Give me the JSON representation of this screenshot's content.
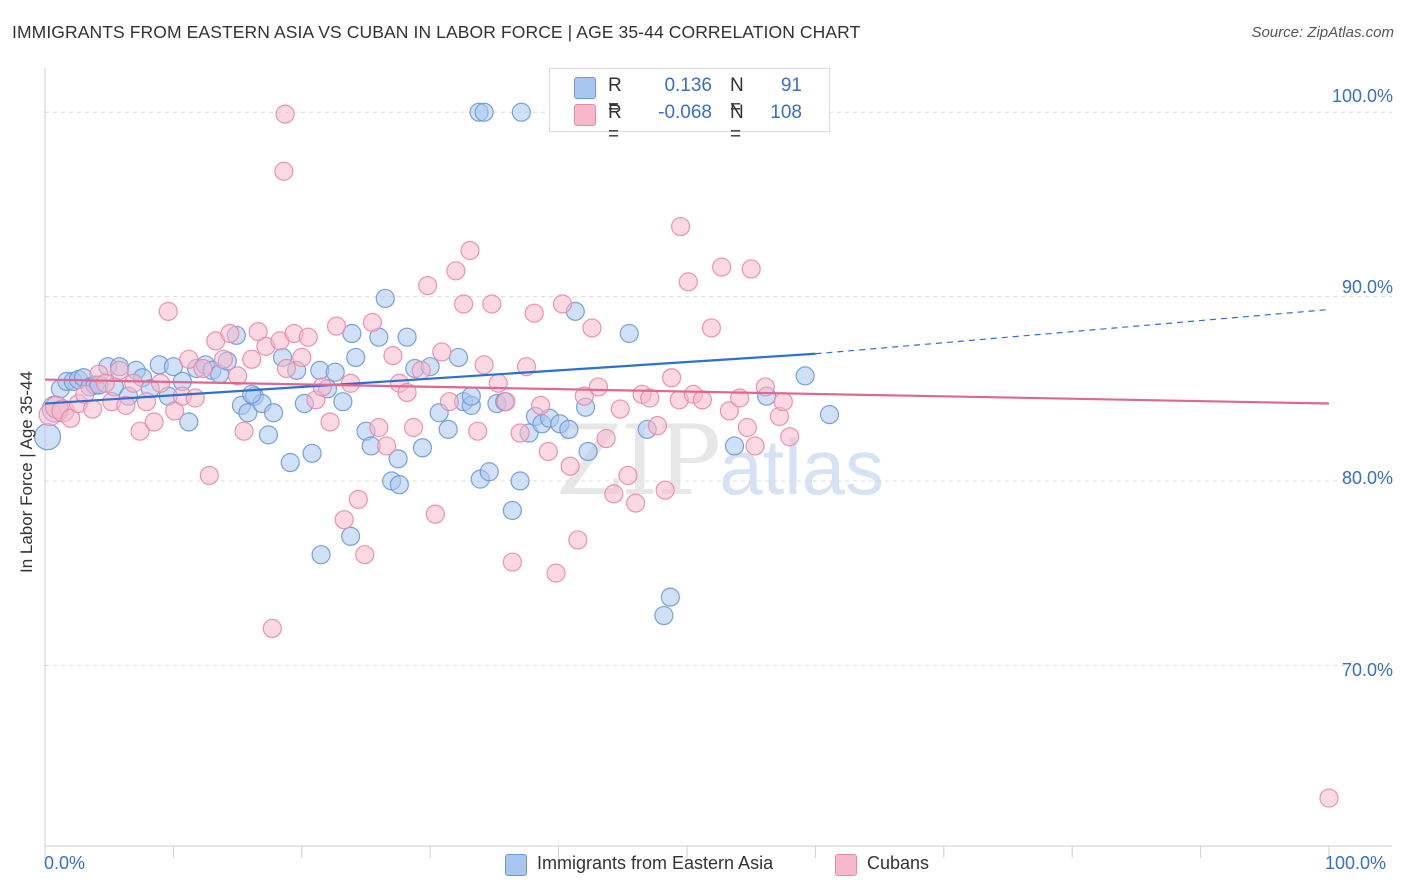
{
  "title": "IMMIGRANTS FROM EASTERN ASIA VS CUBAN IN LABOR FORCE | AGE 35-44 CORRELATION CHART",
  "source": "Source: ZipAtlas.com",
  "watermark": {
    "zip": "ZIP",
    "atlas": "atlas"
  },
  "legend_top": {
    "rows": [
      {
        "r_label": "R =",
        "r_value": "0.136",
        "n_label": "N =",
        "n_value": "91",
        "color": "#a9c6ef"
      },
      {
        "r_label": "R =",
        "r_value": "-0.068",
        "n_label": "N =",
        "n_value": "108",
        "color": "#f7b8cb"
      }
    ]
  },
  "colors": {
    "blue_fill": "#a9c6ef",
    "blue_stroke": "#6b98d8",
    "blue_line": "#2e6fd0",
    "pink_fill": "#f7b8cb",
    "pink_stroke": "#e889a8",
    "pink_line": "#e0678f",
    "grid": "#dcdcdc",
    "tick_label": "#3a6fc4"
  },
  "chart_data": {
    "type": "scatter",
    "title": "IMMIGRANTS FROM EASTERN ASIA VS CUBAN IN LABOR FORCE | AGE 35-44 CORRELATION CHART",
    "xlabel": "",
    "ylabel": "In Labor Force | Age 35-44",
    "xlim": [
      0,
      100
    ],
    "ylim": [
      60.2,
      102.4
    ],
    "x_tick_labels": [
      "0.0%",
      "100.0%"
    ],
    "y_ticks": [
      100,
      90,
      80,
      70
    ],
    "y_tick_labels": [
      "100.0%",
      "90.0%",
      "80.0%",
      "70.0%"
    ],
    "grid": true,
    "legend_position": "bottom",
    "series": [
      {
        "name": "Immigrants from Eastern Asia",
        "R": 0.136,
        "N": 91,
        "trend": {
          "x0": 0,
          "y0": 84.2,
          "x1": 60,
          "y1": 86.9,
          "dashed_to_x": 100,
          "dashed_to_y": 89.3
        },
        "points": [
          [
            0.2,
            82.4
          ],
          [
            0.8,
            83.9
          ],
          [
            1.2,
            85
          ],
          [
            1.7,
            85.4
          ],
          [
            2.2,
            85.4
          ],
          [
            2.6,
            85.5
          ],
          [
            3,
            85.6
          ],
          [
            3.5,
            85.1
          ],
          [
            3.9,
            85.2
          ],
          [
            4.2,
            85.2
          ],
          [
            4.9,
            86.2
          ],
          [
            5.4,
            85.1
          ],
          [
            5.8,
            86.2
          ],
          [
            6.5,
            84.6
          ],
          [
            7.1,
            86
          ],
          [
            7.6,
            85.6
          ],
          [
            8.2,
            85
          ],
          [
            8.9,
            86.3
          ],
          [
            9.6,
            84.6
          ],
          [
            10,
            86.2
          ],
          [
            10.7,
            85.4
          ],
          [
            11.2,
            83.2
          ],
          [
            11.8,
            86.1
          ],
          [
            12.5,
            86.3
          ],
          [
            13,
            86
          ],
          [
            13.6,
            85.8
          ],
          [
            14.2,
            86.5
          ],
          [
            14.9,
            87.9
          ],
          [
            15.3,
            84.1
          ],
          [
            15.8,
            83.7
          ],
          [
            16.3,
            84.6
          ],
          [
            16.9,
            84.2
          ],
          [
            17.4,
            82.5
          ],
          [
            17.8,
            83.7
          ],
          [
            18.5,
            86.7
          ],
          [
            19.1,
            81
          ],
          [
            19.6,
            86
          ],
          [
            20.2,
            84.2
          ],
          [
            20.8,
            81.5
          ],
          [
            21.4,
            86
          ],
          [
            22,
            85
          ],
          [
            22.6,
            85.9
          ],
          [
            23.2,
            84.3
          ],
          [
            23.9,
            88
          ],
          [
            24.2,
            86.7
          ],
          [
            25,
            82.7
          ],
          [
            25.4,
            81.9
          ],
          [
            26,
            87.8
          ],
          [
            26.5,
            89.9
          ],
          [
            27,
            80
          ],
          [
            27.6,
            79.8
          ],
          [
            28.2,
            87.8
          ],
          [
            28.8,
            86.1
          ],
          [
            29.4,
            81.8
          ],
          [
            30,
            86.2
          ],
          [
            30.7,
            83.7
          ],
          [
            31.4,
            82.8
          ],
          [
            32.2,
            86.7
          ],
          [
            32.6,
            84.3
          ],
          [
            33.2,
            84.1
          ],
          [
            33.9,
            80.1
          ],
          [
            34.6,
            80.5
          ],
          [
            35.2,
            84.2
          ],
          [
            35.8,
            84.3
          ],
          [
            36.4,
            78.4
          ],
          [
            37,
            80
          ],
          [
            37.7,
            82.6
          ],
          [
            38.2,
            83.5
          ],
          [
            38.7,
            83.1
          ],
          [
            39.3,
            83.4
          ],
          [
            40.1,
            83.1
          ],
          [
            40.8,
            82.8
          ],
          [
            41.3,
            89.2
          ],
          [
            42.3,
            81.6
          ],
          [
            33.8,
            100
          ],
          [
            34.2,
            100
          ],
          [
            37.1,
            100
          ],
          [
            45.5,
            88
          ],
          [
            46.9,
            82.8
          ],
          [
            48.7,
            73.7
          ],
          [
            48.2,
            72.7
          ],
          [
            53.7,
            81.9
          ],
          [
            56.2,
            84.6
          ],
          [
            59.2,
            85.7
          ],
          [
            61.1,
            83.6
          ],
          [
            23.8,
            77
          ],
          [
            21.5,
            76
          ],
          [
            42.1,
            84
          ],
          [
            33.2,
            84.6
          ],
          [
            27.5,
            81.2
          ],
          [
            16.1,
            84.7
          ]
        ]
      },
      {
        "name": "Cubans",
        "R": -0.068,
        "N": 108,
        "trend": {
          "x0": 0,
          "y0": 85.5,
          "x1": 100,
          "y1": 84.2
        },
        "points": [
          [
            0.4,
            83.6
          ],
          [
            0.9,
            84
          ],
          [
            1.4,
            83.8
          ],
          [
            2,
            83.4
          ],
          [
            2.6,
            84.2
          ],
          [
            3.1,
            84.7
          ],
          [
            3.7,
            83.9
          ],
          [
            4.2,
            85.8
          ],
          [
            4.7,
            85.3
          ],
          [
            5.2,
            84.3
          ],
          [
            5.8,
            86
          ],
          [
            6.3,
            84.1
          ],
          [
            6.9,
            85.3
          ],
          [
            7.4,
            82.7
          ],
          [
            7.9,
            84.3
          ],
          [
            8.5,
            83.2
          ],
          [
            9,
            85.3
          ],
          [
            9.6,
            89.2
          ],
          [
            10.1,
            83.8
          ],
          [
            10.7,
            84.6
          ],
          [
            11.2,
            86.6
          ],
          [
            11.7,
            84.5
          ],
          [
            12.3,
            86.1
          ],
          [
            12.8,
            80.3
          ],
          [
            13.3,
            87.6
          ],
          [
            13.9,
            86.6
          ],
          [
            14.4,
            88
          ],
          [
            15,
            85.7
          ],
          [
            15.5,
            82.7
          ],
          [
            16.1,
            86.6
          ],
          [
            16.6,
            88.1
          ],
          [
            17.2,
            87.3
          ],
          [
            17.7,
            72
          ],
          [
            18.3,
            87.6
          ],
          [
            18.8,
            86.1
          ],
          [
            19.4,
            88
          ],
          [
            20,
            86.7
          ],
          [
            20.5,
            87.8
          ],
          [
            21.1,
            84.4
          ],
          [
            21.6,
            85.1
          ],
          [
            22.2,
            83.2
          ],
          [
            22.7,
            88.4
          ],
          [
            23.3,
            77.9
          ],
          [
            23.8,
            85.3
          ],
          [
            24.4,
            79
          ],
          [
            24.9,
            76
          ],
          [
            25.5,
            88.6
          ],
          [
            26,
            82.9
          ],
          [
            26.6,
            81.9
          ],
          [
            27.1,
            86.8
          ],
          [
            27.6,
            85.3
          ],
          [
            28.2,
            84.8
          ],
          [
            28.7,
            82.9
          ],
          [
            29.3,
            86
          ],
          [
            29.8,
            90.6
          ],
          [
            30.4,
            78.2
          ],
          [
            30.9,
            87
          ],
          [
            31.5,
            84.3
          ],
          [
            32,
            91.4
          ],
          [
            32.6,
            89.6
          ],
          [
            33.1,
            92.5
          ],
          [
            33.7,
            82.7
          ],
          [
            34.2,
            86.3
          ],
          [
            34.8,
            89.6
          ],
          [
            35.3,
            85.3
          ],
          [
            35.9,
            84.3
          ],
          [
            36.4,
            75.6
          ],
          [
            37,
            82.6
          ],
          [
            37.5,
            86.2
          ],
          [
            38.1,
            89.1
          ],
          [
            38.6,
            84.1
          ],
          [
            39.2,
            81.6
          ],
          [
            39.8,
            75
          ],
          [
            40.3,
            89.6
          ],
          [
            40.9,
            80.8
          ],
          [
            41.5,
            76.8
          ],
          [
            42,
            84.6
          ],
          [
            42.6,
            88.3
          ],
          [
            43.1,
            85.1
          ],
          [
            43.7,
            82.3
          ],
          [
            44.3,
            79.3
          ],
          [
            44.8,
            83.9
          ],
          [
            45.4,
            80.3
          ],
          [
            46,
            78.8
          ],
          [
            46.5,
            84.7
          ],
          [
            47.1,
            84.5
          ],
          [
            47.7,
            83
          ],
          [
            48.3,
            79.5
          ],
          [
            48.8,
            85.6
          ],
          [
            49.4,
            84.4
          ],
          [
            18.6,
            96.8
          ],
          [
            18.7,
            99.9
          ],
          [
            49.5,
            93.8
          ],
          [
            50.1,
            90.8
          ],
          [
            50.5,
            84.7
          ],
          [
            51.2,
            84.4
          ],
          [
            51.9,
            88.3
          ],
          [
            52.7,
            91.6
          ],
          [
            53.3,
            83.8
          ],
          [
            54.1,
            84.5
          ],
          [
            54.7,
            82.9
          ],
          [
            55.3,
            81.9
          ],
          [
            56.1,
            85.1
          ],
          [
            57.2,
            83.5
          ],
          [
            58,
            82.4
          ],
          [
            100,
            62.8
          ],
          [
            55,
            91.5
          ],
          [
            57.5,
            84.3
          ]
        ]
      }
    ]
  }
}
